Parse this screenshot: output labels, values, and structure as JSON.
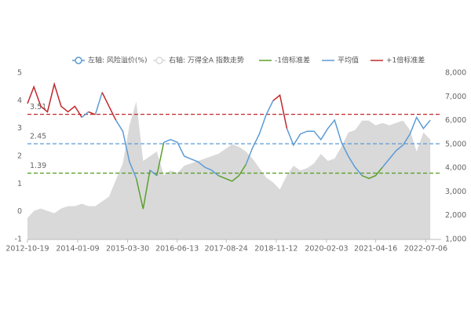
{
  "chart_data": {
    "type": "line",
    "x": [
      "2012-10-19",
      "2012-12-15",
      "2013-02-15",
      "2013-04-15",
      "2013-06-15",
      "2013-08-15",
      "2013-10-15",
      "2013-12-15",
      "2014-02-15",
      "2014-04-15",
      "2014-06-15",
      "2014-08-15",
      "2014-10-15",
      "2014-12-15",
      "2015-02-15",
      "2015-04-15",
      "2015-06-15",
      "2015-08-15",
      "2015-10-15",
      "2015-12-15",
      "2016-02-15",
      "2016-04-15",
      "2016-06-15",
      "2016-08-15",
      "2016-10-15",
      "2016-12-15",
      "2017-02-15",
      "2017-04-15",
      "2017-06-15",
      "2017-08-15",
      "2017-10-15",
      "2017-12-15",
      "2018-02-15",
      "2018-04-15",
      "2018-06-15",
      "2018-08-15",
      "2018-10-15",
      "2018-12-15",
      "2019-02-15",
      "2019-04-15",
      "2019-06-15",
      "2019-08-15",
      "2019-10-15",
      "2019-12-15",
      "2020-02-15",
      "2020-04-15",
      "2020-06-15",
      "2020-08-15",
      "2020-10-15",
      "2020-12-15",
      "2021-02-15",
      "2021-04-15",
      "2021-06-15",
      "2021-08-15",
      "2021-10-15",
      "2021-12-15",
      "2022-02-15",
      "2022-04-15",
      "2022-06-15",
      "2022-08-15"
    ],
    "series": [
      {
        "name": "左轴: 风险溢价(%)",
        "color": "#5b9bd5",
        "values": [
          3.9,
          4.5,
          3.8,
          3.6,
          4.6,
          3.8,
          3.6,
          3.8,
          3.4,
          3.6,
          3.5,
          4.3,
          3.8,
          3.3,
          2.9,
          1.8,
          1.2,
          0.1,
          1.5,
          1.3,
          2.5,
          2.6,
          2.5,
          2.0,
          1.9,
          1.8,
          1.6,
          1.5,
          1.3,
          1.2,
          1.1,
          1.3,
          1.7,
          2.3,
          2.8,
          3.5,
          4.0,
          4.2,
          3.0,
          2.4,
          2.8,
          2.9,
          2.9,
          2.6,
          3.0,
          3.3,
          2.5,
          2.0,
          1.6,
          1.3,
          1.2,
          1.3,
          1.6,
          1.9,
          2.2,
          2.4,
          2.8,
          3.4,
          3.0,
          3.3
        ]
      },
      {
        "name": "右轴: 万得全A 指数走势",
        "color": "#d9d9d9",
        "axis": "y2",
        "type": "area",
        "values": [
          1900,
          2200,
          2300,
          2200,
          2100,
          2300,
          2400,
          2400,
          2500,
          2400,
          2400,
          2600,
          2800,
          3500,
          4200,
          5800,
          6800,
          4300,
          4500,
          4700,
          3700,
          3900,
          3800,
          4100,
          4200,
          4300,
          4400,
          4500,
          4600,
          4800,
          5000,
          4900,
          4700,
          4400,
          4000,
          3600,
          3400,
          3100,
          3700,
          4100,
          3900,
          4000,
          4200,
          4600,
          4300,
          4400,
          4900,
          5500,
          5600,
          6000,
          6000,
          5800,
          5900,
          5800,
          5900,
          6000,
          5600,
          4700,
          5500,
          5200
        ]
      }
    ],
    "ref_lines": [
      {
        "name": "+1倍标准差",
        "value": 3.51,
        "color": "#c0282a"
      },
      {
        "name": "平均值",
        "value": 2.45,
        "color": "#5b9bd5"
      },
      {
        "name": "-1倍标准差",
        "value": 1.39,
        "color": "#5aa02c"
      }
    ],
    "xlim": [
      "2012-10-19",
      "2022-11-20"
    ],
    "xticks": [
      "2012-10-19",
      "2014-01-09",
      "2015-03-30",
      "2016-06-13",
      "2017-08-24",
      "2018-11-12",
      "2020-02-03",
      "2021-04-16",
      "2022-07-06"
    ],
    "ylim": [
      -1,
      5
    ],
    "yticks": [
      5,
      4,
      3,
      2,
      1,
      0,
      -1
    ],
    "y2lim": [
      1000,
      8000
    ],
    "y2ticks": [
      {
        "value": 8000,
        "label": "8,000"
      },
      {
        "value": 7000,
        "label": "7,000"
      },
      {
        "value": 6000,
        "label": "6,000"
      },
      {
        "value": 5000,
        "label": "5,000"
      },
      {
        "value": 4000,
        "label": "4,000"
      },
      {
        "value": 3000,
        "label": "3,000"
      },
      {
        "value": 2000,
        "label": "2,000"
      },
      {
        "value": 1000,
        "label": "1,000"
      }
    ]
  }
}
